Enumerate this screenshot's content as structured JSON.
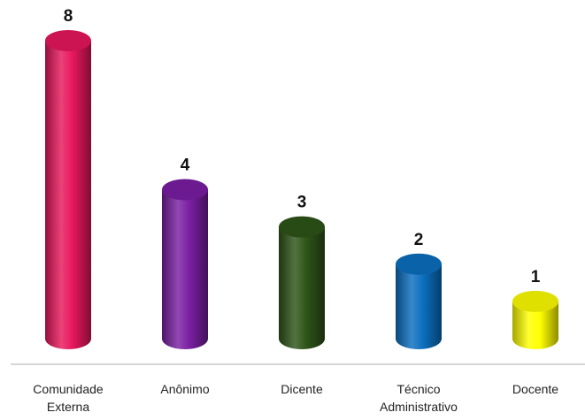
{
  "chart_data": {
    "type": "bar",
    "style": "3d-cylinder",
    "categories": [
      [
        "Comunidade",
        "Externa"
      ],
      [
        "Anônimo"
      ],
      [
        "Dicente"
      ],
      [
        "Técnico",
        "Administrativo"
      ],
      [
        "Docente"
      ]
    ],
    "values": [
      8,
      4,
      3,
      2,
      1
    ],
    "data_labels": [
      "8",
      "4",
      "3",
      "2",
      "1"
    ],
    "colors": [
      "#e8175d",
      "#7a1fa2",
      "#2e5418",
      "#0b6fbf",
      "#ffff00"
    ],
    "ylim": [
      0,
      8
    ],
    "grid": false,
    "legend": "none",
    "title": "",
    "xlabel": "",
    "ylabel": ""
  }
}
